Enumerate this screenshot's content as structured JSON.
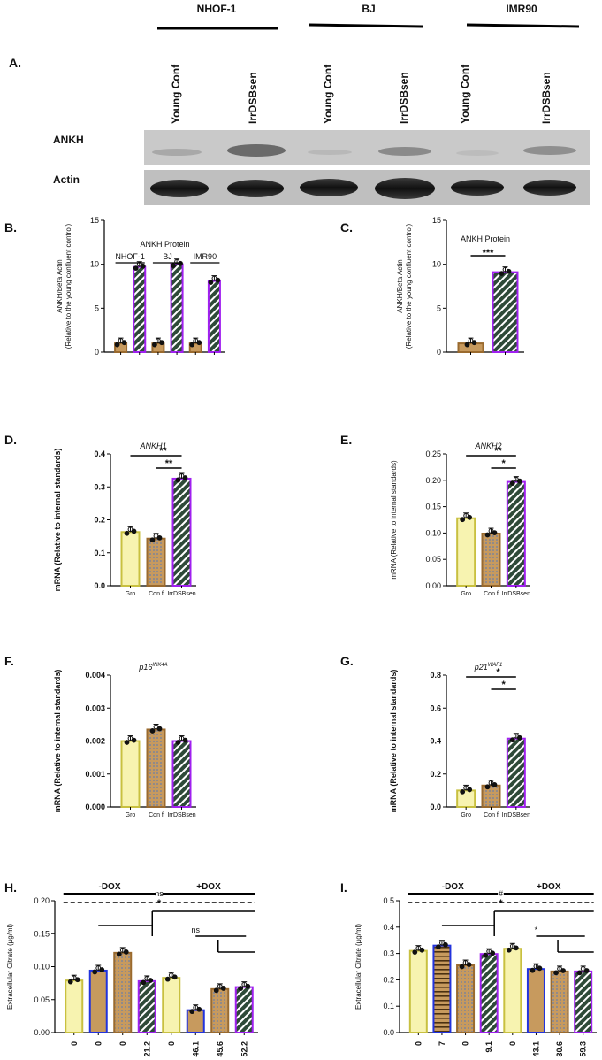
{
  "cell_lines": [
    "NHOF-1",
    "BJ",
    "IMR90"
  ],
  "panel_labels": {
    "A": "A.",
    "B": "B.",
    "C": "C.",
    "D": "D.",
    "E": "E.",
    "F": "F.",
    "G": "G.",
    "H": "H.",
    "I": "I."
  },
  "blot": {
    "lane_labels": [
      "Young Conf",
      "IrrDSBsen",
      "Young Conf",
      "IrrDSBsen",
      "Young Conf",
      "IrrDSBsen"
    ],
    "row_labels": [
      "ANKH",
      "Actin"
    ]
  },
  "chart_data": [
    {
      "id": "B",
      "type": "bar",
      "title": "ANKH Protein",
      "ylabel": "ANKH/Beta Actin\n(Relative to the young confluent control)",
      "ylim": [
        0,
        15
      ],
      "yticks": [
        0,
        5,
        10,
        15
      ],
      "groups": [
        "NHOF-1",
        "BJ",
        "IMR90"
      ],
      "categories": [
        "",
        "",
        "",
        "",
        "",
        ""
      ],
      "values": [
        1,
        9.7,
        1,
        10,
        1,
        8.1
      ]
    },
    {
      "id": "C",
      "type": "bar",
      "title": "ANKH Protein",
      "ylabel": "ANKH/Beta Actin\n(Relative to the young confluent control)",
      "ylim": [
        0,
        15
      ],
      "yticks": [
        0,
        5,
        10,
        15
      ],
      "categories": [
        "",
        ""
      ],
      "values": [
        1,
        9.1
      ],
      "significance": [
        "***"
      ]
    },
    {
      "id": "D",
      "type": "bar",
      "title": "ANKH1",
      "ylabel": "mRNA (Relative to internal standards)",
      "ylim": [
        0,
        0.4
      ],
      "yticks": [
        "0.0",
        "0.1",
        "0.2",
        "0.3",
        "0.4"
      ],
      "categories": [
        "Gro",
        "Con f",
        "IrrDSBsen"
      ],
      "values": [
        0.163,
        0.143,
        0.325
      ],
      "significance": [
        "**",
        "**"
      ]
    },
    {
      "id": "E",
      "type": "bar",
      "title": "ANKH2",
      "ylabel": "mRNA (Relative to internal standards)",
      "ylim": [
        0,
        0.25
      ],
      "yticks": [
        "0.00",
        "0.05",
        "0.10",
        "0.15",
        "0.20",
        "0.25"
      ],
      "categories": [
        "Gro",
        "Con f",
        "IrrDSBsen"
      ],
      "values": [
        0.128,
        0.099,
        0.197
      ],
      "significance": [
        "**",
        "*"
      ]
    },
    {
      "id": "F",
      "type": "bar",
      "title": "p16",
      "title_sup": "INK4A",
      "ylabel": "mRNA (Relative to internal standards)",
      "ylim": [
        0,
        0.004
      ],
      "yticks": [
        "0.000",
        "0.001",
        "0.002",
        "0.003",
        "0.004"
      ],
      "categories": [
        "Gro",
        "Con f",
        "IrrDSBsen"
      ],
      "values": [
        0.002,
        0.00235,
        0.002
      ]
    },
    {
      "id": "G",
      "type": "bar",
      "title": "p21",
      "title_sup": "WAF1",
      "ylabel": "mRNA (Relative to internal standards)",
      "ylim": [
        0,
        0.8
      ],
      "yticks": [
        "0.0",
        "0.2",
        "0.4",
        "0.6",
        "0.8"
      ],
      "categories": [
        "Gro",
        "Con f",
        "IrrDSBsen"
      ],
      "values": [
        0.1,
        0.13,
        0.415
      ],
      "significance": [
        "*",
        "*"
      ]
    },
    {
      "id": "H",
      "type": "bar",
      "ylabel": "Extracellular Citrate (µg/ml)",
      "ylim": [
        0,
        0.2
      ],
      "yticks": [
        "0.00",
        "0.05",
        "0.10",
        "0.15",
        "0.20"
      ],
      "categories": [
        "0",
        "0",
        "0",
        "21.2",
        "0",
        "46.1",
        "45.6",
        "52.2"
      ],
      "values": [
        0.079,
        0.094,
        0.121,
        0.078,
        0.083,
        0.034,
        0.066,
        0.069
      ],
      "groups": [
        "-DOX",
        "+DOX"
      ],
      "significance": [
        "ns",
        "*",
        "ns"
      ]
    },
    {
      "id": "I",
      "type": "bar",
      "ylabel": "Extracellular Citrate (µg/ml)",
      "ylim": [
        0,
        0.5
      ],
      "yticks": [
        "0.0",
        "0.1",
        "0.2",
        "0.3",
        "0.4",
        "0.5"
      ],
      "categories": [
        "0",
        "7",
        "0",
        "9.1",
        "0",
        "43.1",
        "30.6",
        "59.3"
      ],
      "values": [
        0.31,
        0.33,
        0.255,
        0.298,
        0.318,
        0.241,
        0.232,
        0.232
      ],
      "groups": [
        "-DOX",
        "+DOX"
      ],
      "significance": [
        "#",
        "*",
        "*"
      ]
    }
  ],
  "colors": {
    "young": "#c79a5e",
    "senescent_stripe": "#2e4a38",
    "senescent_border": "#a020f0",
    "yellow": "#d9d64a",
    "blue": "#2233dd",
    "brown": "#9a6a2e",
    "red_sig": "#e02020"
  }
}
